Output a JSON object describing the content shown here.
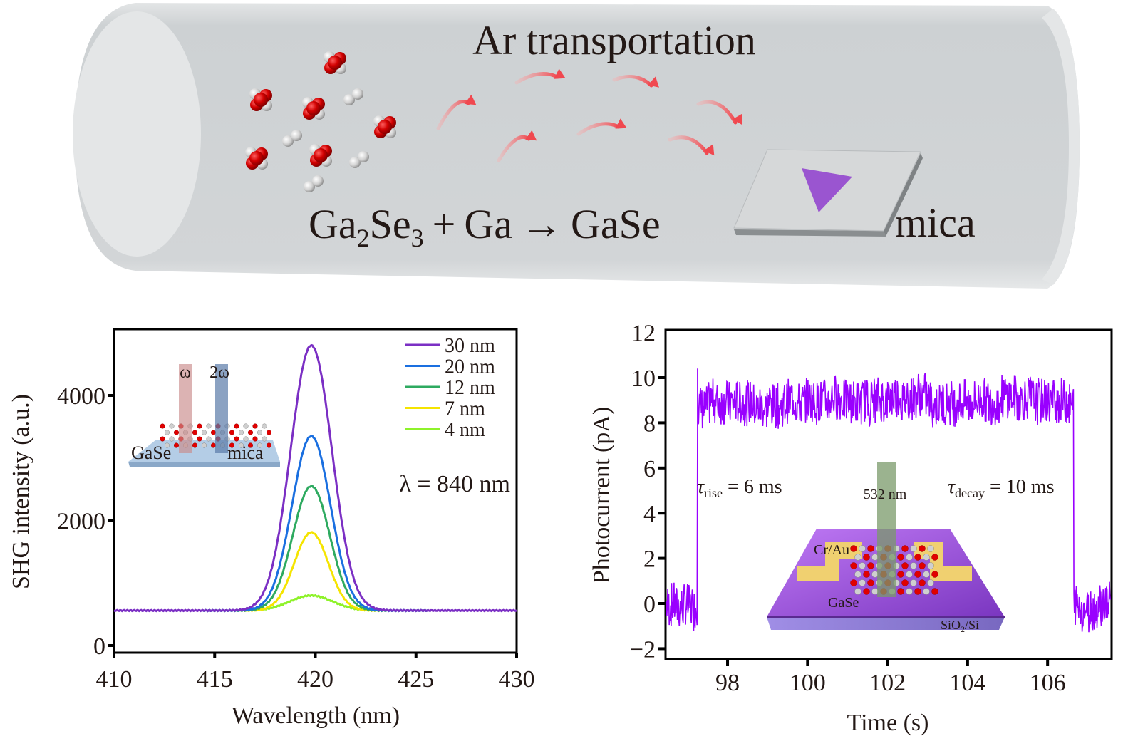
{
  "schematic": {
    "title": "Ar transportation",
    "reaction": {
      "reactant1_base": "Ga",
      "reactant1_sub1": "2",
      "reactant1_mid": "Se",
      "reactant1_sub2": "3",
      "plus": "+",
      "reactant2": "Ga",
      "arrow": "→",
      "product": "GaSe"
    },
    "substrate_label": "mica",
    "colors": {
      "tube": "#d0d3d5",
      "arrow": "#f0545a",
      "flake": "#9a55d0",
      "molecule_red": "#d40000",
      "molecule_white": "#e6e6e6"
    }
  },
  "chart_data": [
    {
      "type": "line",
      "title": "",
      "xlabel": "Wavelength (nm)",
      "ylabel": "SHG intensity (a.u.)",
      "xlim": [
        410,
        430
      ],
      "ylim": [
        -50,
        5200
      ],
      "xticks": [
        "410",
        "415",
        "420",
        "425",
        "430"
      ],
      "yticks": [
        "0",
        "2000",
        "4000"
      ],
      "xtick_values": [
        410,
        415,
        420,
        425,
        430
      ],
      "ytick_values": [
        0,
        2000,
        4000
      ],
      "annotation": "λ = 840 nm",
      "legend_position": "top-right",
      "baseline": 560,
      "peak_center": 419.8,
      "series": [
        {
          "name": "30 nm",
          "color": "#7b2fc4",
          "peak": 4800,
          "width": 1.45,
          "x_range": [
            410,
            430
          ]
        },
        {
          "name": "20 nm",
          "color": "#1a6fe0",
          "peak": 3350,
          "width": 1.35,
          "x_range": [
            414.4,
            425.6
          ]
        },
        {
          "name": "12 nm",
          "color": "#2eaa60",
          "peak": 2550,
          "width": 1.3,
          "x_range": [
            414.4,
            425.6
          ]
        },
        {
          "name": "7 nm",
          "color": "#f5e400",
          "peak": 1810,
          "width": 1.2,
          "x_range": [
            416,
            423.5
          ]
        },
        {
          "name": "4 nm",
          "color": "#8ef22a",
          "peak": 800,
          "width": 1.5,
          "x_range": [
            416,
            423.5
          ]
        }
      ],
      "inset": {
        "beam_in": "ω",
        "beam_out": "2ω",
        "left_label": "GaSe",
        "right_label": "mica"
      }
    },
    {
      "type": "line",
      "title": "",
      "xlabel": "Time (s)",
      "ylabel": "Photocurrent (pA)",
      "xlim": [
        96.45,
        107.6
      ],
      "ylim": [
        -2.5,
        12
      ],
      "xticks": [
        "98",
        "100",
        "102",
        "104",
        "106"
      ],
      "yticks": [
        "−2",
        "0",
        "2",
        "4",
        "6",
        "8",
        "10",
        "12"
      ],
      "xtick_values": [
        98,
        100,
        102,
        104,
        106
      ],
      "ytick_values": [
        -2,
        0,
        2,
        4,
        6,
        8,
        10,
        12
      ],
      "series": [
        {
          "name": "photocurrent",
          "color": "#9900ff",
          "on_level": 9.0,
          "off_level": 0.0,
          "noise_amplitude": 1.0,
          "on_time": 97.25,
          "off_time": 106.65
        }
      ],
      "annotations": {
        "rise": {
          "symbol": "τ",
          "sub": "rise",
          "text": " = 6 ms"
        },
        "decay": {
          "symbol": "τ",
          "sub": "decay",
          "text": " = 10 ms"
        }
      },
      "inset": {
        "laser": "532 nm",
        "electrode": "Cr/Au",
        "channel": "GaSe",
        "substrate_base": "SiO",
        "substrate_sub": "2",
        "substrate_tail": "/Si"
      }
    }
  ]
}
